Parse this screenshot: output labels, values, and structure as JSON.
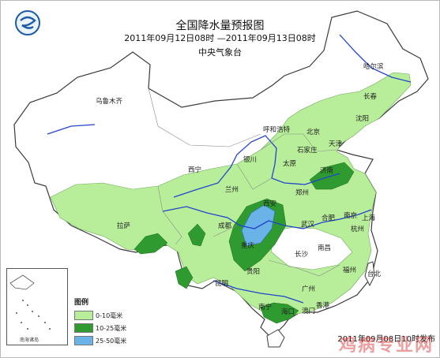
{
  "header": {
    "title": "全国降水量预报图",
    "period": "2011年09月12日08时 —2011年09月13日08时",
    "agency": "中央气象台"
  },
  "cities": [
    "乌鲁木齐",
    "哈尔滨",
    "长春",
    "沈阳",
    "呼和浩特",
    "北京",
    "天津",
    "石家庄",
    "太原",
    "济南",
    "银川",
    "西宁",
    "兰州",
    "西安",
    "郑州",
    "合肥",
    "南京",
    "上海",
    "杭州",
    "武汉",
    "南昌",
    "长沙",
    "福州",
    "台北",
    "成都",
    "重庆",
    "贵阳",
    "昆明",
    "南宁",
    "广州",
    "香港",
    "澳门",
    "海口",
    "拉萨"
  ],
  "legend": {
    "title": "图例",
    "items": [
      {
        "label": "0-10毫米",
        "color": "#b8ee9a"
      },
      {
        "label": "10-25毫米",
        "color": "#2f9a2f"
      },
      {
        "label": "25-50毫米",
        "color": "#6ab3e8"
      }
    ]
  },
  "inset": {
    "label": "南海诸岛"
  },
  "footer": {
    "issued": "2011年09月08日10时发布",
    "watermark": "鸡病专业网"
  },
  "colors": {
    "river": "#2244cc",
    "border": "#3b3b3b"
  }
}
